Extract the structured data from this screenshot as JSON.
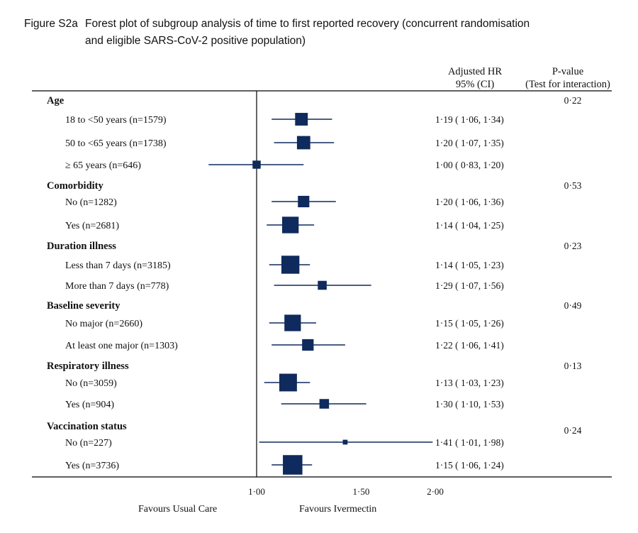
{
  "figure": {
    "label": "Figure S2a",
    "title_line1": "Forest plot of subgroup analysis of time to first reported recovery (concurrent randomisation",
    "title_line2": "and eligible SARS-CoV-2 positive population)"
  },
  "columns": {
    "hr_line1": "Adjusted HR",
    "hr_line2": "95% (CI)",
    "p_line1": "P-value",
    "p_line2": "(Test for interaction)"
  },
  "chart_data": {
    "type": "forest",
    "title": "Forest plot of subgroup analysis of time to first reported recovery (concurrent randomisation and eligible SARS-CoV-2 positive population)",
    "xlabel_left": "Favours Usual Care",
    "xlabel_right": "Favours Ivermectin",
    "reference_line": 1.0,
    "x_scale": "log",
    "xticks": [
      1.0,
      1.5,
      2.0
    ],
    "xtick_labels": [
      "1·00",
      "1·50",
      "2·00"
    ],
    "groups": [
      {
        "name": "Age",
        "p_interaction": "0·22",
        "rows": [
          {
            "label": "18 to <50 years (n=1579)",
            "n": 1579,
            "hr": 1.19,
            "lo": 1.06,
            "hi": 1.34,
            "text": "1·19 ( 1·06, 1·34)"
          },
          {
            "label": "50 to <65 years (n=1738)",
            "n": 1738,
            "hr": 1.2,
            "lo": 1.07,
            "hi": 1.35,
            "text": "1·20 ( 1·07, 1·35)"
          },
          {
            "label": "≥ 65 years (n=646)",
            "n": 646,
            "hr": 1.0,
            "lo": 0.83,
            "hi": 1.2,
            "text": "1·00 ( 0·83, 1·20)"
          }
        ]
      },
      {
        "name": "Comorbidity",
        "p_interaction": "0·53",
        "rows": [
          {
            "label": "No (n=1282)",
            "n": 1282,
            "hr": 1.2,
            "lo": 1.06,
            "hi": 1.36,
            "text": "1·20 ( 1·06, 1·36)"
          },
          {
            "label": "Yes (n=2681)",
            "n": 2681,
            "hr": 1.14,
            "lo": 1.04,
            "hi": 1.25,
            "text": "1·14 ( 1·04, 1·25)"
          }
        ]
      },
      {
        "name": "Duration illness",
        "p_interaction": "0·23",
        "rows": [
          {
            "label": "Less than 7 days (n=3185)",
            "n": 3185,
            "hr": 1.14,
            "lo": 1.05,
            "hi": 1.23,
            "text": "1·14 ( 1·05, 1·23)"
          },
          {
            "label": "More than 7 days (n=778)",
            "n": 778,
            "hr": 1.29,
            "lo": 1.07,
            "hi": 1.56,
            "text": "1·29 ( 1·07, 1·56)"
          }
        ]
      },
      {
        "name": "Baseline severity",
        "p_interaction": "0·49",
        "rows": [
          {
            "label": "No major (n=2660)",
            "n": 2660,
            "hr": 1.15,
            "lo": 1.05,
            "hi": 1.26,
            "text": "1·15 ( 1·05, 1·26)"
          },
          {
            "label": "At least one major (n=1303)",
            "n": 1303,
            "hr": 1.22,
            "lo": 1.06,
            "hi": 1.41,
            "text": "1·22 ( 1·06, 1·41)"
          }
        ]
      },
      {
        "name": "Respiratory illness",
        "p_interaction": "0·13",
        "rows": [
          {
            "label": "No (n=3059)",
            "n": 3059,
            "hr": 1.13,
            "lo": 1.03,
            "hi": 1.23,
            "text": "1·13 ( 1·03, 1·23)"
          },
          {
            "label": "Yes (n=904)",
            "n": 904,
            "hr": 1.3,
            "lo": 1.1,
            "hi": 1.53,
            "text": "1·30 ( 1·10, 1·53)"
          }
        ]
      },
      {
        "name": "Vaccination status",
        "p_interaction": "0·24",
        "rows": [
          {
            "label": "No (n=227)",
            "n": 227,
            "hr": 1.41,
            "lo": 1.01,
            "hi": 1.98,
            "text": "1·41 ( 1·01, 1·98)"
          },
          {
            "label": "Yes (n=3736)",
            "n": 3736,
            "hr": 1.15,
            "lo": 1.06,
            "hi": 1.24,
            "text": "1·15 ( 1·06, 1·24)"
          }
        ]
      }
    ]
  },
  "colors": {
    "marker": "#0f2a5c",
    "ci_line": "#0f2a5c",
    "axis": "#000000",
    "text": "#111111"
  }
}
